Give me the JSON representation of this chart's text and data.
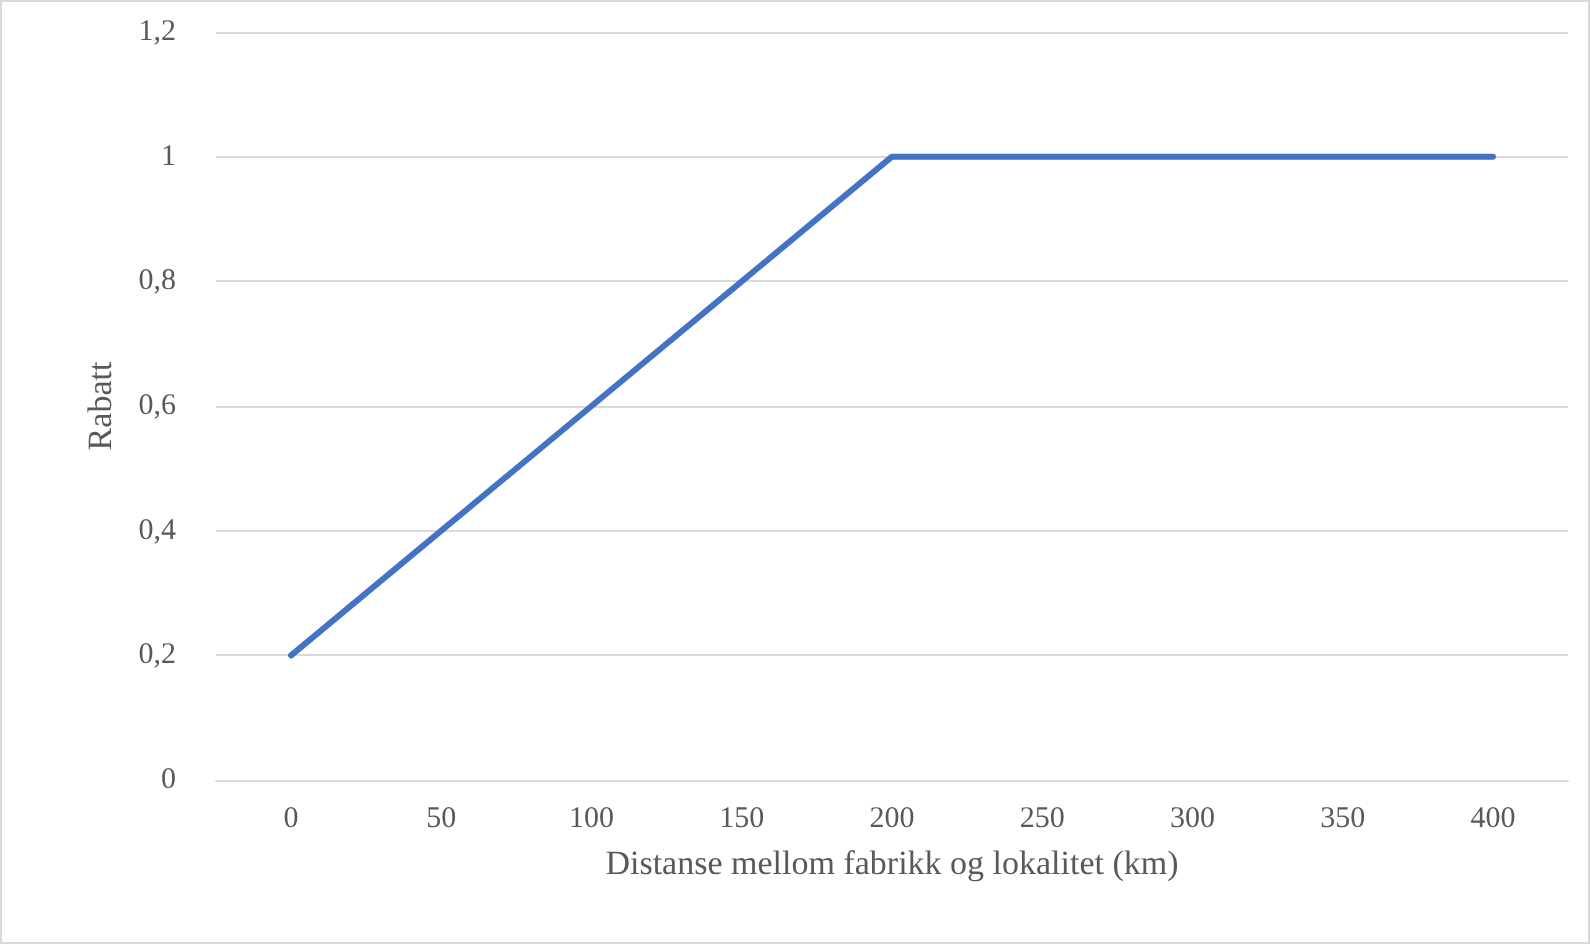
{
  "chart_data": {
    "type": "line",
    "xlabel": "Distanse mellom fabrikk og lokalitet (km)",
    "ylabel": "Rabatt",
    "categories": [
      "0",
      "50",
      "100",
      "150",
      "200",
      "250",
      "300",
      "350",
      "400"
    ],
    "series": [
      {
        "color": "#4472c4",
        "values": [
          0.2,
          0.4,
          0.6,
          0.8,
          1,
          1,
          1,
          1,
          1
        ]
      }
    ],
    "ylim": [
      0,
      1.2
    ],
    "yticks": [
      0,
      {
        "value": 0.2,
        "label": "0,2"
      },
      {
        "value": 0.4,
        "label": "0,4"
      },
      {
        "value": 0.6,
        "label": "0,6"
      },
      {
        "value": 0.8,
        "label": "0,8"
      },
      1,
      {
        "value": 1.2,
        "label": "1,2"
      }
    ],
    "grid": "y",
    "marker": "none",
    "line_style": "solid"
  }
}
